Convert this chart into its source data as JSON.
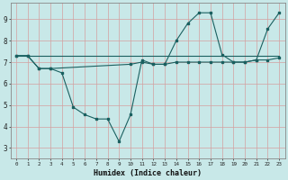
{
  "xlabel": "Humidex (Indice chaleur)",
  "ylabel": "",
  "xlim": [
    -0.5,
    23.5
  ],
  "ylim": [
    2.5,
    9.75
  ],
  "yticks": [
    3,
    4,
    5,
    6,
    7,
    8,
    9
  ],
  "xticks": [
    0,
    1,
    2,
    3,
    4,
    5,
    6,
    7,
    8,
    9,
    10,
    11,
    12,
    13,
    14,
    15,
    16,
    17,
    18,
    19,
    20,
    21,
    22,
    23
  ],
  "background_color": "#c8e8e8",
  "grid_color": "#aacccc",
  "line_color": "#1a6060",
  "line1_x": [
    0,
    1,
    2,
    3,
    4,
    5,
    6,
    7,
    8,
    9,
    10,
    11,
    12,
    13,
    14,
    15,
    16,
    17,
    18,
    19,
    20,
    21,
    22,
    23
  ],
  "line1_y": [
    7.3,
    7.3,
    6.7,
    6.7,
    6.5,
    4.9,
    4.55,
    4.35,
    4.35,
    3.3,
    4.55,
    7.1,
    6.9,
    6.9,
    8.0,
    8.8,
    9.3,
    9.3,
    7.35,
    7.0,
    7.0,
    7.1,
    8.55,
    9.3
  ],
  "line2_x": [
    0,
    23
  ],
  "line2_y": [
    7.3,
    7.3
  ],
  "line3_x": [
    0,
    1,
    2,
    3,
    10,
    11,
    12,
    13,
    14,
    15,
    16,
    17,
    18,
    19,
    20,
    21,
    22,
    23
  ],
  "line3_y": [
    7.3,
    7.3,
    6.7,
    6.7,
    6.9,
    7.0,
    6.9,
    6.9,
    7.0,
    7.0,
    7.0,
    7.0,
    7.0,
    7.0,
    7.0,
    7.1,
    7.1,
    7.2
  ]
}
